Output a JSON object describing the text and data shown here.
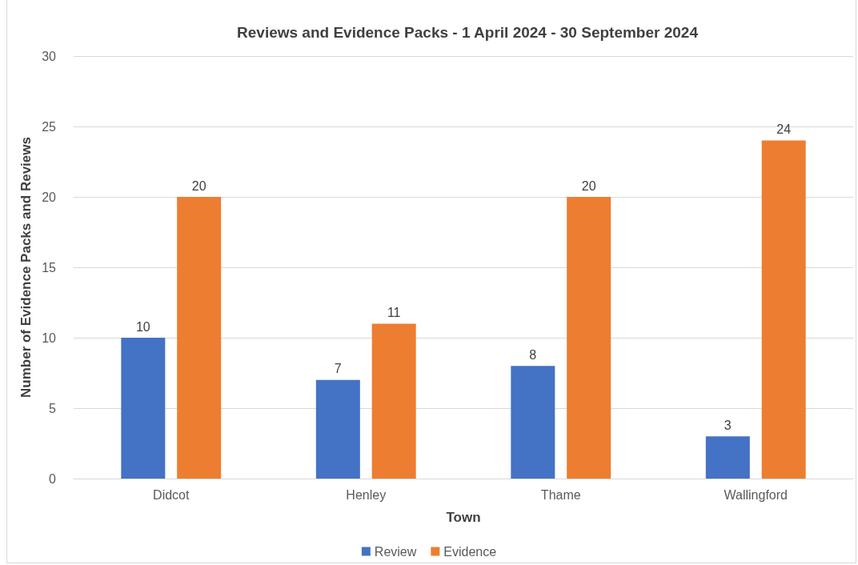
{
  "chart_data": {
    "type": "bar",
    "title": "Reviews and Evidence Packs - 1 April 2024 - 30 September 2024",
    "xlabel": "Town",
    "ylabel": "Number of Evidence Packs and Reviews",
    "categories": [
      "Didcot",
      "Henley",
      "Thame",
      "Wallingford"
    ],
    "series": [
      {
        "name": "Review",
        "color": "#4472c4",
        "values": [
          10,
          7,
          8,
          3
        ]
      },
      {
        "name": "Evidence",
        "color": "#ed7d31",
        "values": [
          20,
          11,
          20,
          24
        ]
      }
    ],
    "ylim": [
      0,
      30
    ],
    "yticks": [
      0,
      5,
      10,
      15,
      20,
      25,
      30
    ],
    "grid": "y",
    "legend": "bottom",
    "data_labels": true
  }
}
